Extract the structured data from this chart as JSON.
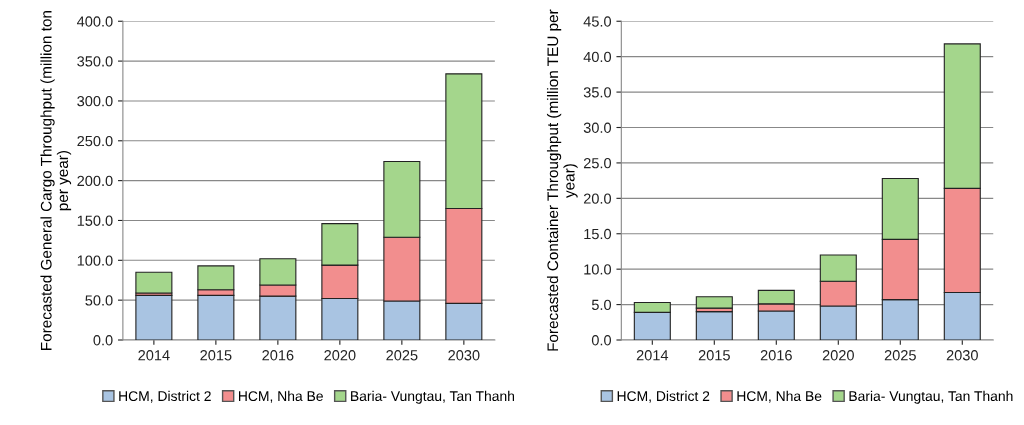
{
  "chart_data": [
    {
      "type": "bar",
      "stacked": true,
      "ylabel": "Forecasted General Cargo Throughput (million ton per year)",
      "categories": [
        "2014",
        "2015",
        "2016",
        "2020",
        "2025",
        "2030"
      ],
      "series": [
        {
          "name": "HCM, District 2",
          "color": "#a9c4e2",
          "values": [
            56,
            56,
            55,
            52,
            49,
            46
          ]
        },
        {
          "name": "HCM, Nha Be",
          "color": "#f28e8e",
          "values": [
            3,
            7,
            14,
            42,
            80,
            119
          ]
        },
        {
          "name": "Baria- Vungtau, Tan Thanh",
          "color": "#a4d68c",
          "values": [
            26,
            30,
            33,
            52,
            95,
            169
          ]
        }
      ],
      "ylim": [
        0,
        400
      ],
      "yticks": [
        {
          "value": 0,
          "label": "0.0"
        },
        {
          "value": 50,
          "label": "50.0"
        },
        {
          "value": 100,
          "label": "100.0"
        },
        {
          "value": 150,
          "label": "150.0"
        },
        {
          "value": 200,
          "label": "200.0"
        },
        {
          "value": 250,
          "label": "250.0"
        },
        {
          "value": 300,
          "label": "300.0"
        },
        {
          "value": 350,
          "label": "350.0"
        },
        {
          "value": 400,
          "label": "400.0"
        }
      ],
      "grid": "y",
      "legend": "bottom"
    },
    {
      "type": "bar",
      "stacked": true,
      "ylabel": "Forecasted Container Throughput (million TEU per year)",
      "categories": [
        "2014",
        "2015",
        "2016",
        "2020",
        "2025",
        "2030"
      ],
      "series": [
        {
          "name": "HCM, District 2",
          "color": "#a9c4e2",
          "values": [
            3.9,
            4.0,
            4.1,
            4.8,
            5.7,
            6.7
          ]
        },
        {
          "name": "HCM, Nha Be",
          "color": "#f28e8e",
          "values": [
            0.0,
            0.5,
            1.0,
            3.5,
            8.5,
            14.7
          ]
        },
        {
          "name": "Baria- Vungtau, Tan Thanh",
          "color": "#a4d68c",
          "values": [
            1.4,
            1.6,
            1.9,
            3.7,
            8.6,
            20.4
          ]
        }
      ],
      "ylim": [
        0,
        45
      ],
      "yticks": [
        {
          "value": 0,
          "label": "0.0"
        },
        {
          "value": 5,
          "label": "5.0"
        },
        {
          "value": 10,
          "label": "10.0"
        },
        {
          "value": 15,
          "label": "15.0"
        },
        {
          "value": 20,
          "label": "20.0"
        },
        {
          "value": 25,
          "label": "25.0"
        },
        {
          "value": 30,
          "label": "30.0"
        },
        {
          "value": 35,
          "label": "35.0"
        },
        {
          "value": 40,
          "label": "40.0"
        },
        {
          "value": 45,
          "label": "45.0"
        }
      ],
      "grid": "y",
      "legend": "bottom"
    }
  ]
}
